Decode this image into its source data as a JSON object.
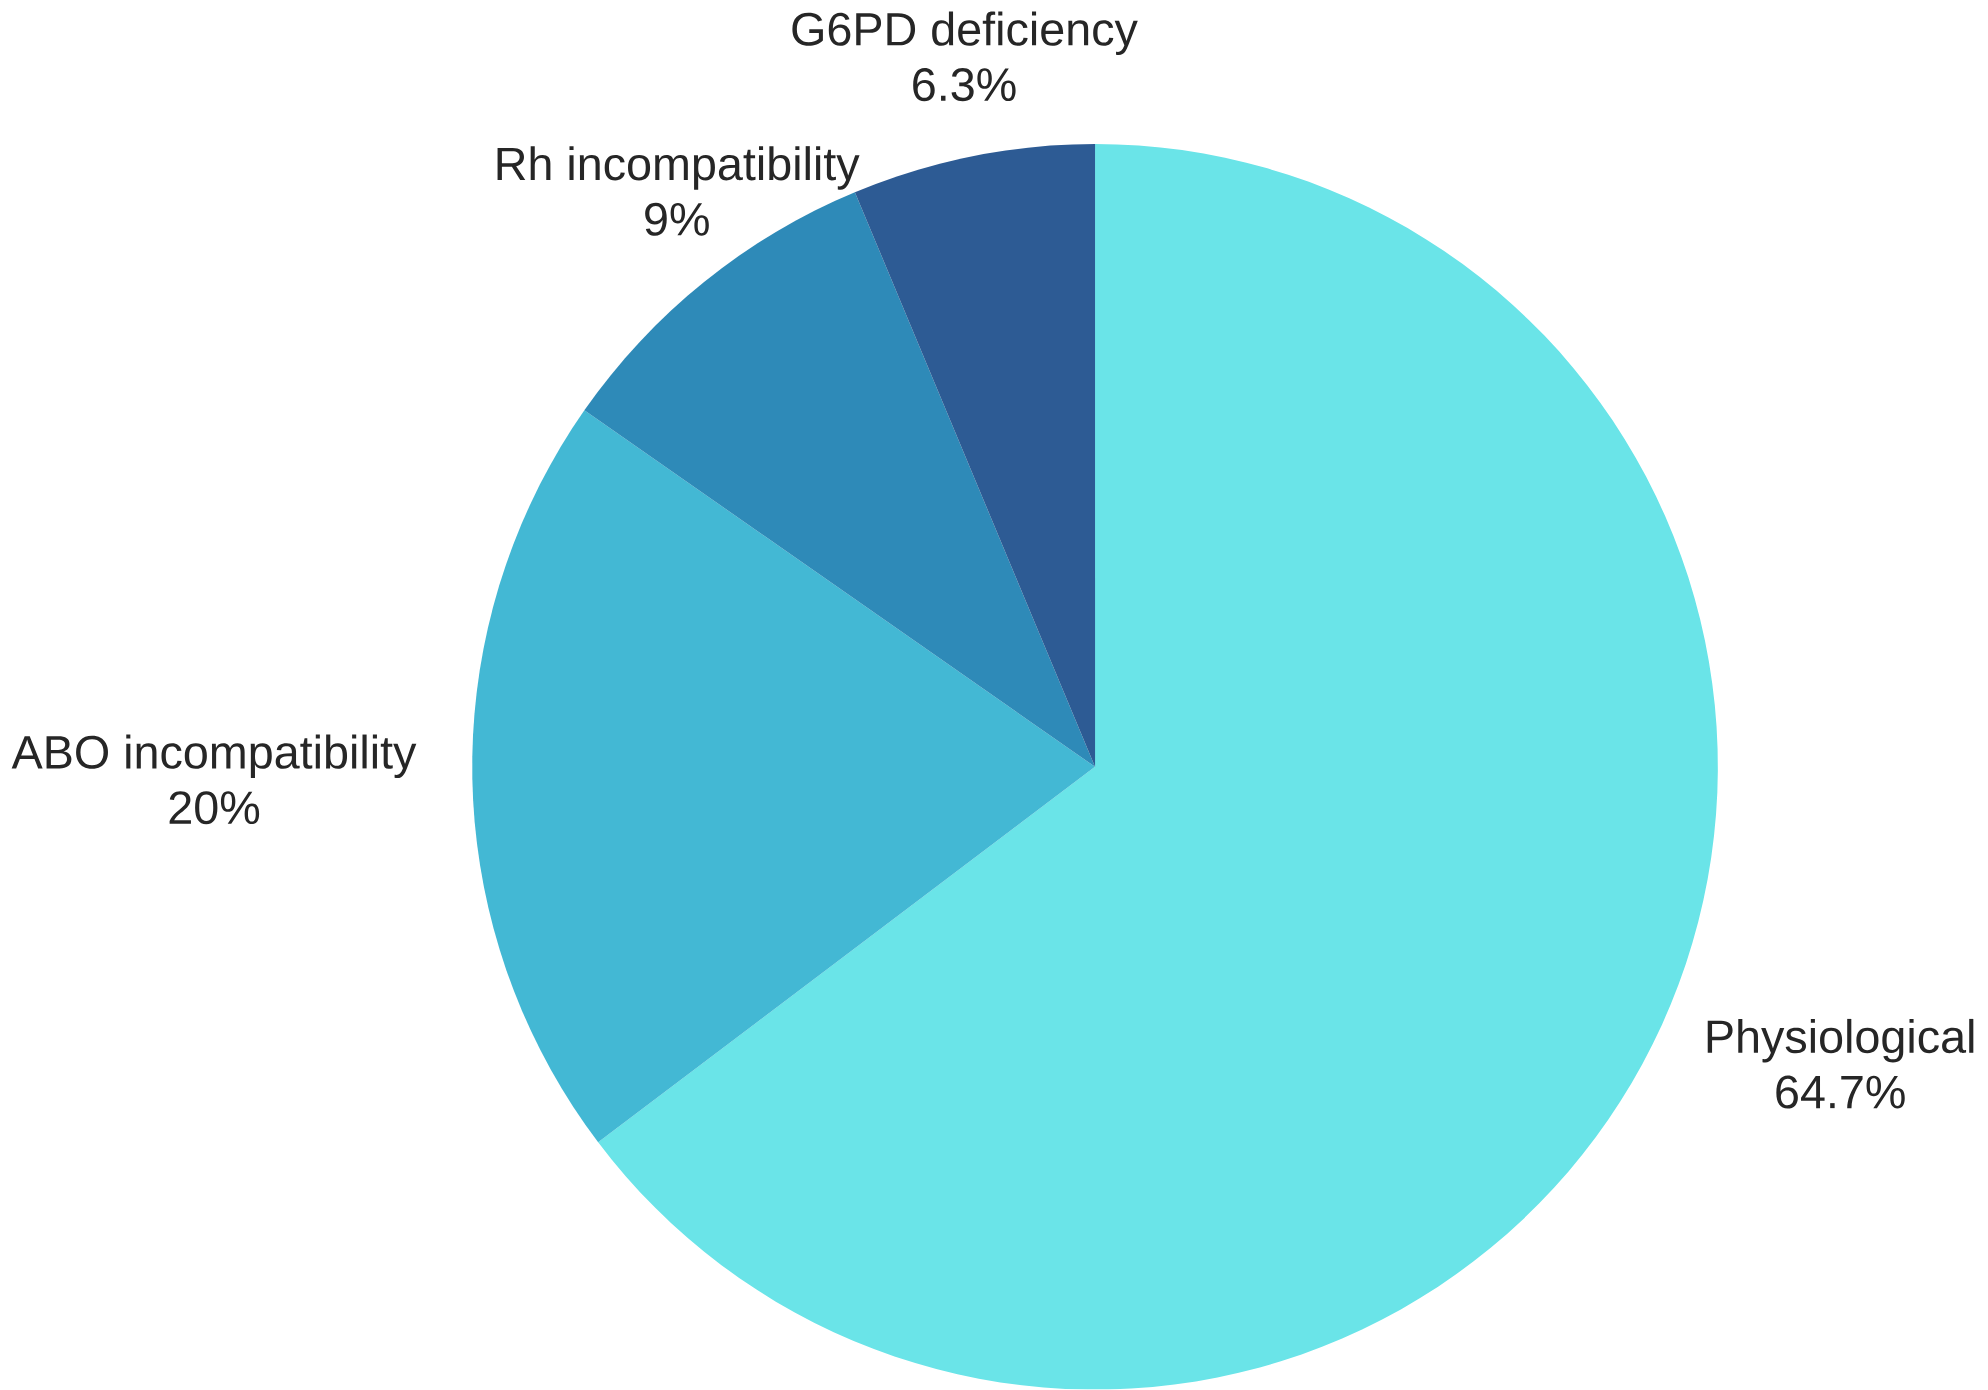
{
  "chart_data": {
    "type": "pie",
    "categories": [
      "Physiological",
      "ABO incompatibility",
      "Rh incompatibility",
      "G6PD deficiency"
    ],
    "values": [
      64.7,
      20,
      9,
      6.3
    ],
    "value_labels": [
      "64.7%",
      "20%",
      "9%",
      "6.3%"
    ],
    "colors": [
      "#6ae4e8",
      "#43b8d4",
      "#2e8ab8",
      "#2d5b94"
    ]
  }
}
